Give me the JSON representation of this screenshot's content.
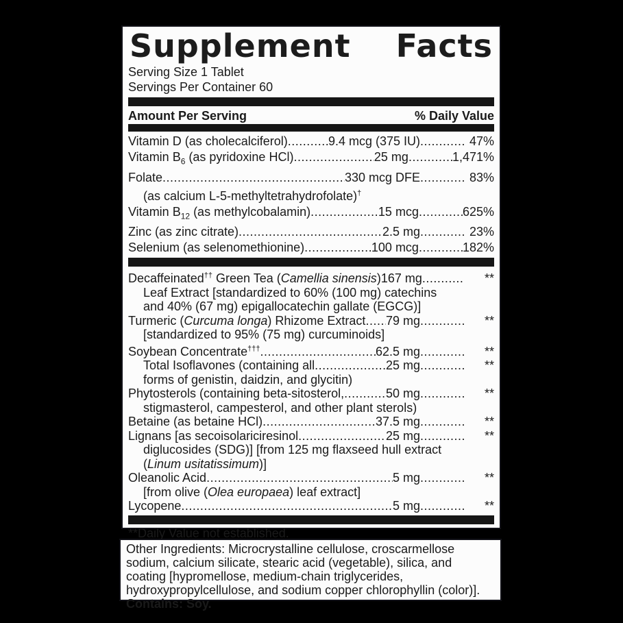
{
  "colors": {
    "background": "#000000",
    "panel": "#fcfcfc",
    "ink": "#161616"
  },
  "supplement": {
    "title_words": [
      "Supplement",
      "Facts"
    ],
    "serving_size": "Serving Size 1 Tablet",
    "servings_per_container": "Servings Per Container 60",
    "header_left": "Amount Per Serving",
    "header_right": "% Daily Value",
    "nutrients": [
      {
        "label": [
          {
            "t": "Vitamin D (as cholecalciferol)"
          }
        ],
        "amount": "9.4 mcg (375 IU)",
        "dv": "47%"
      },
      {
        "label": [
          {
            "t": "Vitamin B"
          },
          {
            "t": "6",
            "style": "sub"
          },
          {
            "t": " (as pyridoxine HCl)"
          }
        ],
        "amount": "25 mg",
        "dv": "1,471%"
      },
      {
        "label": [
          {
            "t": "Folate"
          }
        ],
        "amount": "330 mcg DFE",
        "dv": "83%",
        "sublines": [
          [
            {
              "t": "(as calcium L-5-methyltetrahydrofolate)"
            },
            {
              "t": "†",
              "style": "sup"
            }
          ]
        ]
      },
      {
        "label": [
          {
            "t": "Vitamin B"
          },
          {
            "t": "12",
            "style": "sub"
          },
          {
            "t": " (as methylcobalamin) "
          }
        ],
        "amount": "15 mcg",
        "dv": "625%"
      },
      {
        "label": [
          {
            "t": "Zinc (as zinc citrate)"
          }
        ],
        "amount": "2.5 mg",
        "dv": "23%"
      },
      {
        "label": [
          {
            "t": "Selenium (as selenomethionine)"
          }
        ],
        "amount": "100 mcg",
        "dv": "182%"
      }
    ],
    "botanicals": [
      {
        "label": [
          {
            "t": "Decaffeinated"
          },
          {
            "t": "††",
            "style": "sup"
          },
          {
            "t": " Green Tea ("
          },
          {
            "t": "Camellia sinensis",
            "style": "i"
          },
          {
            "t": ")"
          }
        ],
        "amount": "167 mg",
        "dv": "**",
        "sublines": [
          [
            {
              "t": "Leaf Extract [standardized to 60% (100 mg) catechins"
            }
          ],
          [
            {
              "t": "and 40% (67 mg) epigallocatechin gallate (EGCG)]"
            }
          ]
        ]
      },
      {
        "label": [
          {
            "t": "Turmeric ("
          },
          {
            "t": "Curcuma longa",
            "style": "i"
          },
          {
            "t": ") Rhizome Extract"
          }
        ],
        "amount": "79 mg",
        "dv": "**",
        "sublines": [
          [
            {
              "t": "[standardized to 95% (75 mg) curcuminoids]"
            }
          ]
        ]
      },
      {
        "label": [
          {
            "t": "Soybean Concentrate"
          },
          {
            "t": "†††",
            "style": "sup"
          }
        ],
        "amount": "62.5 mg",
        "dv": "**"
      },
      {
        "indent": true,
        "label": [
          {
            "t": "Total Isoflavones (containing all"
          }
        ],
        "amount": "25 mg",
        "dv": "**",
        "sublines": [
          [
            {
              "t": "forms of genistin, daidzin, and glycitin)"
            }
          ]
        ]
      },
      {
        "label": [
          {
            "t": "Phytosterols (containing beta-sitosterol,"
          }
        ],
        "amount": "50 mg",
        "dv": "**",
        "sublines": [
          [
            {
              "t": "stigmasterol, campesterol, and other plant sterols)"
            }
          ]
        ]
      },
      {
        "label": [
          {
            "t": "Betaine (as betaine HCl)"
          }
        ],
        "amount": "37.5 mg",
        "dv": "**"
      },
      {
        "label": [
          {
            "t": "Lignans [as secoisolariciresinol"
          }
        ],
        "amount": "25 mg",
        "dv": "**",
        "sublines": [
          [
            {
              "t": "diglucosides (SDG)] [from 125 mg flaxseed hull extract"
            }
          ],
          [
            {
              "t": "("
            },
            {
              "t": "Linum usitatissimum",
              "style": "i"
            },
            {
              "t": ")]"
            }
          ]
        ]
      },
      {
        "label": [
          {
            "t": "Oleanolic Acid "
          }
        ],
        "amount": "5 mg",
        "dv": "**",
        "sublines": [
          [
            {
              "t": "[from olive ("
            },
            {
              "t": "Olea europaea",
              "style": "i"
            },
            {
              "t": ") leaf extract]"
            }
          ]
        ]
      },
      {
        "label": [
          {
            "t": "Lycopene "
          }
        ],
        "amount": "5 mg",
        "dv": "**"
      }
    ],
    "footnote": "**Daily Value not established."
  },
  "other_ingredients": {
    "text": "Other Ingredients: Microcrystalline cellulose, croscarmellose sodium, calcium silicate, stearic acid (vegetable), silica, and coating [hypromellose, medium-chain triglycerides, hydroxypropylcellulose, and sodium copper chlorophyllin (color)]. ",
    "contains": "Contains: Soy."
  }
}
